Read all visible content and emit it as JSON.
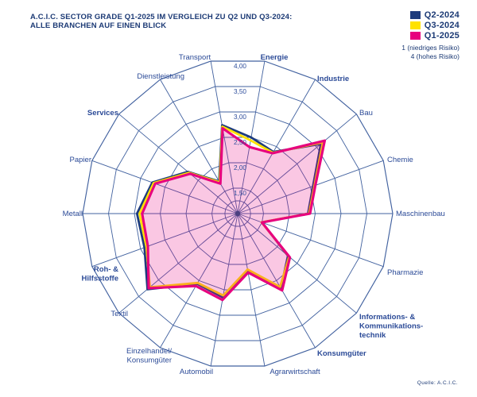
{
  "title": {
    "line1": "A.C.I.C. SECTOR GRADE Q1-2025 IM VERGLEICH ZU Q2 UND Q3-2024:",
    "line2": "ALLE BRANCHEN AUF EINEN BLICK"
  },
  "legend": {
    "items": [
      {
        "label": "Q2-2024",
        "color": "#1e3c7d"
      },
      {
        "label": "Q3-2024",
        "color": "#ffe200"
      },
      {
        "label": "Q1-2025",
        "color": "#e7007e"
      }
    ],
    "note_lines": [
      "1 (niedriges Risiko)",
      "4 (hohes Risiko)"
    ]
  },
  "source": "Quelle: A.C.I.C.",
  "colors": {
    "text_navy": "#1c3a75",
    "grid_blue": "#41619f",
    "fill_pink": "rgba(231,0,126,0.22)"
  },
  "chart_data": {
    "type": "radar",
    "title": "A.C.I.C. Sector Grade Q1-2025 im Vergleich zu Q2 und Q3-2024: Alle Branchen auf einen Blick",
    "axis_range": [
      1,
      4
    ],
    "rings": [
      1.25,
      1.5,
      2,
      2.5,
      3,
      3.5,
      4
    ],
    "tick_values": [
      4,
      3.5,
      3,
      2.5,
      2,
      1.5
    ],
    "tick_labels": [
      "4,00",
      "3,50",
      "3,00",
      "2,50",
      "2,00",
      "1,50"
    ],
    "scale_note": [
      "1 (niedriges Risiko)",
      "4 (hohes Risiko)"
    ],
    "legend_position": "top-right",
    "categories": [
      {
        "label": "Energie",
        "bold": true
      },
      {
        "label": "Industrie",
        "bold": true
      },
      {
        "label": "Bau",
        "bold": false
      },
      {
        "label": "Chemie",
        "bold": false
      },
      {
        "label": "Maschinenbau",
        "bold": false
      },
      {
        "label": "Pharmazie",
        "bold": false
      },
      {
        "label": "Informations- &\nKommunikations-\ntechnik",
        "bold": true
      },
      {
        "label": "Konsumgüter",
        "bold": true
      },
      {
        "label": "Agrarwirtschaft",
        "bold": false
      },
      {
        "label": "Automobil",
        "bold": false
      },
      {
        "label": "Einzelhandel/\nKonsumgüter",
        "bold": false
      },
      {
        "label": "Textil",
        "bold": false
      },
      {
        "label": "Roh- &\nHilfsstoffe",
        "bold": true
      },
      {
        "label": "Metall",
        "bold": false
      },
      {
        "label": "Papier",
        "bold": false
      },
      {
        "label": "Services",
        "bold": true
      },
      {
        "label": "Dienstleistung",
        "bold": false
      },
      {
        "label": "Transport",
        "bold": false
      }
    ],
    "series": [
      {
        "name": "Q2-2024",
        "color": "#1e3c7d",
        "values": [
          2.5,
          2.38,
          3.1,
          2.55,
          2.36,
          1.5,
          2.27,
          2.67,
          2.12,
          2.65,
          2.57,
          3.28,
          2.92,
          2.95,
          2.76,
          2.26,
          1.72,
          2.74
        ]
      },
      {
        "name": "Q3-2024",
        "color": "#ffe200",
        "values": [
          2.44,
          2.36,
          3.15,
          2.58,
          2.38,
          1.49,
          2.3,
          2.64,
          2.1,
          2.61,
          2.55,
          3.22,
          2.88,
          2.9,
          2.73,
          2.23,
          1.7,
          2.71
        ]
      },
      {
        "name": "Q1-2025",
        "color": "#e7007e",
        "fill": "rgba(231,0,126,0.22)",
        "values": [
          2.31,
          2.35,
          3.2,
          2.6,
          2.4,
          1.5,
          2.32,
          2.72,
          2.16,
          2.7,
          2.62,
          3.25,
          2.85,
          2.85,
          2.7,
          2.2,
          1.67,
          2.68
        ]
      }
    ]
  }
}
